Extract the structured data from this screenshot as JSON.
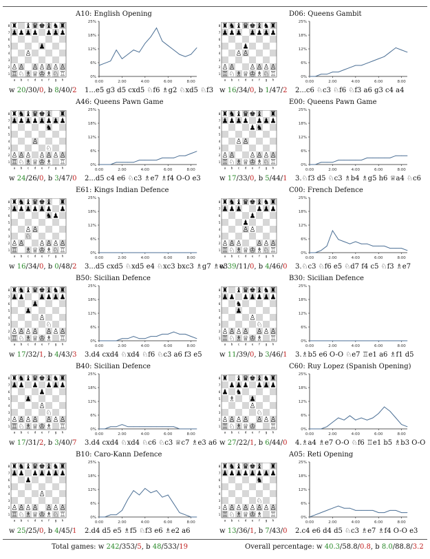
{
  "panels": [
    {
      "title": "A10: English Opening",
      "stats": {
        "w": [
          "20",
          "30",
          "0"
        ],
        "b": [
          "8",
          "40",
          "2"
        ]
      },
      "moves": "1...e5 g3 d5 cxd5 ♘f6 ♗g2 ♘xd5 ♘f3",
      "board": [
        "r.bqkbnr",
        "pppp.ppp",
        "........",
        "....p...",
        "..P.....",
        "........",
        "PP.PPPPP",
        "RNBQKBNR"
      ],
      "chart_data": {
        "type": "line",
        "ylim": [
          0,
          25
        ],
        "yticks": [
          "0%",
          "6%",
          "12%",
          "18%",
          "25%"
        ],
        "xticks": [
          "0:00",
          "2:00",
          "4:00",
          "6:00",
          "8:00"
        ],
        "xlim": [
          0,
          8.5
        ],
        "x": [
          0,
          0.5,
          1,
          1.5,
          2,
          2.5,
          3,
          3.5,
          4,
          4.5,
          5,
          5.5,
          6,
          6.5,
          7,
          7.5,
          8,
          8.5
        ],
        "values": [
          5,
          6,
          7,
          12,
          8,
          10,
          12,
          11,
          15,
          18,
          22,
          16,
          14,
          12,
          10,
          9,
          10,
          13
        ]
      }
    },
    {
      "title": "D06: Queens Gambit",
      "stats": {
        "w": [
          "16",
          "34",
          "0"
        ],
        "b": [
          "1",
          "47",
          "2"
        ]
      },
      "moves": "2...c6 ♘c3 ♘f6 ♘f3 a6 g3 c4 a4",
      "board": [
        "rnbqkbnr",
        "ppp.pppp",
        "........",
        "...p....",
        "..PP....",
        "........",
        "PP..PPPP",
        "RNBQKBNR"
      ],
      "chart_data": {
        "type": "line",
        "ylim": [
          0,
          25
        ],
        "yticks": [
          "0%",
          "6%",
          "12%",
          "18%",
          "25%"
        ],
        "xticks": [
          "0:00",
          "2:00",
          "4:00",
          "6:00",
          "8:00"
        ],
        "xlim": [
          0,
          8.5
        ],
        "x": [
          0,
          0.5,
          1,
          1.5,
          2,
          2.5,
          3,
          3.5,
          4,
          4.5,
          5,
          5.5,
          6,
          6.5,
          7,
          7.5,
          8,
          8.5
        ],
        "values": [
          0,
          0,
          1,
          1,
          2,
          2,
          3,
          4,
          5,
          5,
          6,
          7,
          8,
          9,
          11,
          13,
          12,
          11
        ]
      }
    },
    {
      "title": "A46: Queens Pawn Game",
      "stats": {
        "w": [
          "24",
          "26",
          "0"
        ],
        "b": [
          "3",
          "47",
          "0"
        ]
      },
      "moves": "2...d5 c4 e6 ♘c3 ♗e7 ♗f4 O-O e3",
      "board": [
        "rnbqkb.r",
        "pppppppp",
        ".....n..",
        "........",
        "...P....",
        ".....N..",
        "PPP.PPPP",
        "RNBQKB.R"
      ],
      "chart_data": {
        "type": "line",
        "ylim": [
          0,
          25
        ],
        "yticks": [
          "0%",
          "6%",
          "12%",
          "18%",
          "25%"
        ],
        "xticks": [
          "0:00",
          "2:00",
          "4:00",
          "6:00",
          "8:00"
        ],
        "xlim": [
          0,
          8.5
        ],
        "x": [
          0,
          0.5,
          1,
          1.5,
          2,
          2.5,
          3,
          3.5,
          4,
          4.5,
          5,
          5.5,
          6,
          6.5,
          7,
          7.5,
          8,
          8.5
        ],
        "values": [
          0,
          0,
          0,
          1,
          1,
          1,
          1,
          2,
          2,
          2,
          2,
          3,
          3,
          3,
          4,
          4,
          5,
          6
        ]
      }
    },
    {
      "title": "E00: Queens Pawn Game",
      "stats": {
        "w": [
          "17",
          "33",
          "0"
        ],
        "b": [
          "5",
          "44",
          "1"
        ]
      },
      "moves": "3.♘f3 d5 ♘c3 ♗b4 ♗g5 h6 ♕a4 ♘c6",
      "board": [
        "rnbqkb.r",
        "pppp.ppp",
        "....pn..",
        "........",
        "..PP....",
        "........",
        "PP..PPPP",
        "RNBQKBNR"
      ],
      "chart_data": {
        "type": "line",
        "ylim": [
          0,
          25
        ],
        "yticks": [
          "0%",
          "6%",
          "12%",
          "18%",
          "25%"
        ],
        "xticks": [
          "0:00",
          "2:00",
          "4:00",
          "6:00",
          "8:00"
        ],
        "xlim": [
          0,
          8.5
        ],
        "x": [
          0,
          0.5,
          1,
          1.5,
          2,
          2.5,
          3,
          3.5,
          4,
          4.5,
          5,
          5.5,
          6,
          6.5,
          7,
          7.5,
          8,
          8.5
        ],
        "values": [
          0,
          0,
          1,
          1,
          1,
          2,
          2,
          2,
          2,
          2,
          3,
          3,
          3,
          3,
          3,
          4,
          4,
          4
        ]
      }
    },
    {
      "title": "E61: Kings Indian Defence",
      "stats": {
        "w": [
          "16",
          "34",
          "0"
        ],
        "b": [
          "0",
          "48",
          "2"
        ]
      },
      "moves": "3...d5 cxd5 ♘xd5 e4 ♘xc3 bxc3 ♗g7 ♗e3",
      "board": [
        "rnbqkb.r",
        "pppppp.p",
        ".....np.",
        "........",
        "..PP....",
        "..N.....",
        "PP..PPPP",
        "R.BQKBNR"
      ],
      "chart_data": {
        "type": "line",
        "ylim": [
          0,
          25
        ],
        "yticks": [
          "0%",
          "6%",
          "12%",
          "18%",
          "25%"
        ],
        "xticks": [
          "0:00",
          "2:00",
          "4:00",
          "6:00",
          "8:00"
        ],
        "xlim": [
          0,
          8.5
        ],
        "x": [
          0,
          0.5,
          1,
          1.5,
          2,
          2.5,
          3,
          3.5,
          4,
          4.5,
          5,
          5.5,
          6,
          6.5,
          7,
          7.5,
          8,
          8.5
        ],
        "values": [
          0,
          0,
          0,
          0,
          0,
          0,
          0,
          0,
          0,
          0,
          0,
          0,
          0,
          0,
          0,
          0,
          0,
          0
        ]
      }
    },
    {
      "title": "C00: French Defence",
      "stats": {
        "w": [
          "39",
          "11",
          "0"
        ],
        "b": [
          "4",
          "46",
          "0"
        ]
      },
      "moves": "3.♘c3 ♘f6 e5 ♘d7 f4 c5 ♘f3 ♗e7",
      "board": [
        "rnbqkbnr",
        "ppp..ppp",
        "....p...",
        "...p....",
        "...PP...",
        "........",
        "PPP..PPP",
        "RNBQKBNR"
      ],
      "chart_data": {
        "type": "line",
        "ylim": [
          0,
          25
        ],
        "yticks": [
          "0%",
          "6%",
          "12%",
          "18%",
          "25%"
        ],
        "xticks": [
          "0:00",
          "2:00",
          "4:00",
          "6:00",
          "8:00"
        ],
        "xlim": [
          0,
          8.5
        ],
        "x": [
          0,
          0.5,
          1,
          1.5,
          2,
          2.5,
          3,
          3.5,
          4,
          4.5,
          5,
          5.5,
          6,
          6.5,
          7,
          7.5,
          8,
          8.5
        ],
        "values": [
          0,
          0,
          1,
          3,
          10,
          6,
          5,
          4,
          5,
          4,
          4,
          3,
          3,
          3,
          2,
          2,
          2,
          1
        ]
      }
    },
    {
      "title": "B50: Sicilian Defence",
      "stats": {
        "w": [
          "17",
          "32",
          "1"
        ],
        "b": [
          "4",
          "43",
          "3"
        ]
      },
      "moves": "3.d4 cxd4 ♘xd4 ♘f6 ♘c3 a6 f3 e5",
      "board": [
        "rnbqkbnr",
        "pp..pppp",
        "...p....",
        "..p.....",
        "....P...",
        ".....N..",
        "PPPP.PPP",
        "RNBQKB.R"
      ],
      "chart_data": {
        "type": "line",
        "ylim": [
          0,
          25
        ],
        "yticks": [
          "0%",
          "6%",
          "12%",
          "18%",
          "25%"
        ],
        "xticks": [
          "0:00",
          "2:00",
          "4:00",
          "6:00",
          "8:00"
        ],
        "xlim": [
          0,
          8.5
        ],
        "x": [
          0,
          0.5,
          1,
          1.5,
          2,
          2.5,
          3,
          3.5,
          4,
          4.5,
          5,
          5.5,
          6,
          6.5,
          7,
          7.5,
          8,
          8.5
        ],
        "values": [
          0,
          0,
          0,
          0,
          1,
          1,
          2,
          1,
          1,
          2,
          2,
          3,
          3,
          4,
          3,
          3,
          2,
          1
        ]
      }
    },
    {
      "title": "B30: Sicilian Defence",
      "stats": {
        "w": [
          "11",
          "39",
          "0"
        ],
        "b": [
          "3",
          "46",
          "1"
        ]
      },
      "moves": "3.♗b5 e6 O-O ♘e7 ♖e1 a6 ♗f1 d5",
      "board": [
        "r.bqkbnr",
        "pp.ppppp",
        "..n.....",
        "..p.....",
        "....P...",
        ".....N..",
        "PPPP.PPP",
        "RNBQKB.R"
      ],
      "chart_data": {
        "type": "line",
        "ylim": [
          0,
          25
        ],
        "yticks": [
          "0%",
          "6%",
          "12%",
          "18%",
          "25%"
        ],
        "xticks": [
          "0:00",
          "2:00",
          "4:00",
          "6:00",
          "8:00"
        ],
        "xlim": [
          0,
          8.5
        ],
        "x": [
          0,
          0.5,
          1,
          1.5,
          2,
          2.5,
          3,
          3.5,
          4,
          4.5,
          5,
          5.5,
          6,
          6.5,
          7,
          7.5,
          8,
          8.5
        ],
        "values": [
          0,
          0,
          0,
          0,
          0,
          0,
          0,
          0,
          0,
          0,
          0,
          0,
          0,
          0,
          0,
          0,
          0,
          0
        ]
      }
    },
    {
      "title": "B40: Sicilian Defence",
      "stats": {
        "w": [
          "17",
          "31",
          "2"
        ],
        "b": [
          "3",
          "40",
          "7"
        ]
      },
      "moves": "3.d4 cxd4 ♘xd4 ♘c6 ♘c3 ♕c7 ♗e3 a6",
      "board": [
        "rnbqkbnr",
        "pp.p.ppp",
        "....p...",
        "..p.....",
        "....P...",
        ".....N..",
        "PPPP.PPP",
        "RNBQKB.R"
      ],
      "chart_data": {
        "type": "line",
        "ylim": [
          0,
          25
        ],
        "yticks": [
          "0%",
          "6%",
          "12%",
          "18%",
          "25%"
        ],
        "xticks": [
          "0:00",
          "2:00",
          "4:00",
          "6:00",
          "8:00"
        ],
        "xlim": [
          0,
          8.5
        ],
        "x": [
          0,
          0.5,
          1,
          1.5,
          2,
          2.5,
          3,
          3.5,
          4,
          4.5,
          5,
          5.5,
          6,
          6.5,
          7,
          7.5,
          8,
          8.5
        ],
        "values": [
          0,
          0,
          1,
          1,
          2,
          1,
          1,
          1,
          1,
          1,
          1,
          1,
          1,
          1,
          0,
          0,
          0,
          0
        ]
      }
    },
    {
      "title": "C60: Ruy Lopez (Spanish Opening)",
      "stats": {
        "w": [
          "27",
          "22",
          "1"
        ],
        "b": [
          "6",
          "44",
          "0"
        ]
      },
      "moves": "4.♗a4 ♗e7 O-O ♘f6 ♖e1 b5 ♗b3 O-O",
      "board": [
        "r.bqkbnr",
        ".ppp.ppp",
        "p.n.....",
        ".B..p...",
        "....P...",
        ".....N..",
        "PPPP.PPP",
        "RNBQK..R"
      ],
      "chart_data": {
        "type": "line",
        "ylim": [
          0,
          25
        ],
        "yticks": [
          "0%",
          "6%",
          "12%",
          "18%",
          "25%"
        ],
        "xticks": [
          "0:00",
          "2:00",
          "4:00",
          "6:00",
          "8:00"
        ],
        "xlim": [
          0,
          8.5
        ],
        "x": [
          0,
          0.5,
          1,
          1.5,
          2,
          2.5,
          3,
          3.5,
          4,
          4.5,
          5,
          5.5,
          6,
          6.5,
          7,
          7.5,
          8,
          8.5
        ],
        "values": [
          0,
          0,
          0,
          1,
          3,
          5,
          4,
          6,
          4,
          5,
          4,
          5,
          7,
          10,
          8,
          5,
          2,
          1
        ]
      }
    },
    {
      "title": "B10: Caro-Kann Defence",
      "stats": {
        "w": [
          "25",
          "25",
          "0"
        ],
        "b": [
          "4",
          "45",
          "1"
        ]
      },
      "moves": "2.d4 d5 e5 ♗f5 ♘f3 e6 ♗e2 a6",
      "board": [
        "rnbqkbnr",
        "pp.ppppp",
        "..p.....",
        "........",
        "....P...",
        "........",
        "PPPP.PPP",
        "RNBQKBNR"
      ],
      "chart_data": {
        "type": "line",
        "ylim": [
          0,
          25
        ],
        "yticks": [
          "0%",
          "6%",
          "12%",
          "18%",
          "25%"
        ],
        "xticks": [
          "0:00",
          "2:00",
          "4:00",
          "6:00",
          "8:00"
        ],
        "xlim": [
          0,
          8.5
        ],
        "x": [
          0,
          0.5,
          1,
          1.5,
          2,
          2.5,
          3,
          3.5,
          4,
          4.5,
          5,
          5.5,
          6,
          6.5,
          7,
          7.5,
          8,
          8.5
        ],
        "values": [
          0,
          0,
          1,
          1,
          3,
          8,
          12,
          10,
          13,
          11,
          12,
          9,
          10,
          6,
          2,
          1,
          0,
          0
        ]
      }
    },
    {
      "title": "A05: Reti Opening",
      "stats": {
        "w": [
          "13",
          "36",
          "1"
        ],
        "b": [
          "7",
          "43",
          "0"
        ]
      },
      "moves": "2.c4 e6 d4 d5 ♘c3 ♗e7 ♗f4 O-O e3",
      "board": [
        "rnbqkb.r",
        "pppppppp",
        ".....n..",
        "........",
        "........",
        ".....N..",
        "PPPPPPPP",
        "RNBQKB.R"
      ],
      "chart_data": {
        "type": "line",
        "ylim": [
          0,
          25
        ],
        "yticks": [
          "0%",
          "6%",
          "12%",
          "18%",
          "25%"
        ],
        "xticks": [
          "0:00",
          "2:00",
          "4:00",
          "6:00",
          "8:00"
        ],
        "xlim": [
          0,
          8.5
        ],
        "x": [
          0,
          0.5,
          1,
          1.5,
          2,
          2.5,
          3,
          3.5,
          4,
          4.5,
          5,
          5.5,
          6,
          6.5,
          7,
          7.5,
          8,
          8.5
        ],
        "values": [
          0,
          1,
          2,
          3,
          4,
          5,
          4,
          4,
          3,
          3,
          3,
          3,
          2,
          2,
          3,
          3,
          2,
          2
        ]
      }
    }
  ],
  "footer": {
    "total_label": "Total games: w ",
    "total": [
      "242",
      "353",
      "5"
    ],
    "total_b": [
      "48",
      "533",
      "19"
    ],
    "pct_label": "Overall percentage: w ",
    "pct": [
      "40.3",
      "58.8",
      "0.8"
    ],
    "pct_b": [
      "8.0",
      "88.8",
      "3.2"
    ]
  },
  "colors": {
    "line": "#4a6e94",
    "win": "#2a8a2a",
    "loss": "#c02020",
    "light": "#ffffff",
    "dark": "#d7d7d7"
  }
}
